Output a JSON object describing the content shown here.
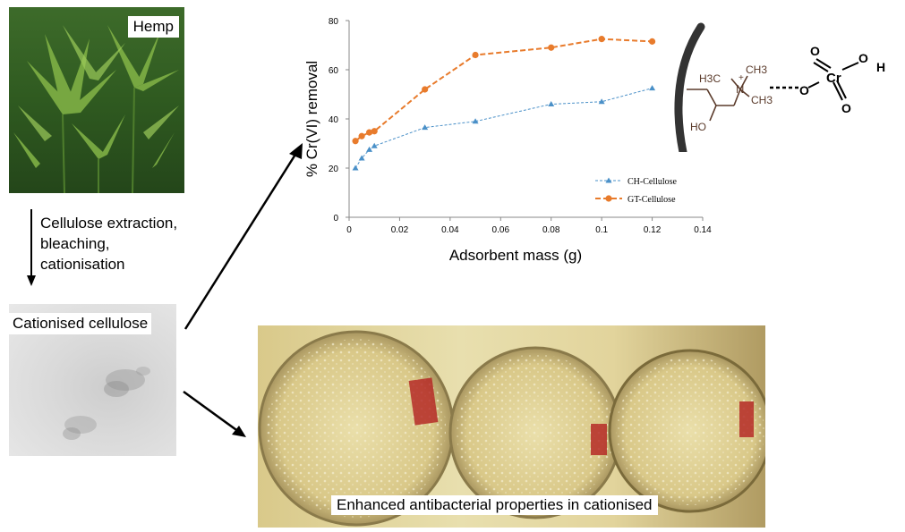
{
  "hemp": {
    "label": "Hemp"
  },
  "process": {
    "lines": [
      "Cellulose extraction,",
      "bleaching,",
      "cationisation"
    ]
  },
  "cationised": {
    "label": "Cationised cellulose"
  },
  "antibacterial": {
    "caption": "Enhanced antibacterial properties in cationised"
  },
  "molecule": {
    "h3c": "H3C",
    "ch3_top": "CH3",
    "ch3_right": "CH3",
    "n": "N",
    "plus": "+",
    "ho": "HO",
    "cr": "Cr",
    "o_top": "O",
    "o_left": "O",
    "o_right": "O",
    "h": "H",
    "o_bottom": "O"
  },
  "chart_data": {
    "type": "line",
    "xlabel": "Adsorbent mass (g)",
    "ylabel": "% Cr(VI) removal",
    "xlim": [
      0,
      0.14
    ],
    "ylim": [
      0,
      80
    ],
    "xticks": [
      "0",
      "0.02",
      "0.04",
      "0.06",
      "0.08",
      "0.1",
      "0.12",
      "0.14"
    ],
    "yticks": [
      "0",
      "20",
      "40",
      "60",
      "80"
    ],
    "grid": false,
    "legend_position": "bottom-right",
    "series": [
      {
        "name": "CH-Cellulose",
        "color": "#4a90c8",
        "marker": "triangle",
        "x": [
          0.0025,
          0.005,
          0.008,
          0.01,
          0.03,
          0.05,
          0.08,
          0.1,
          0.12
        ],
        "y": [
          20,
          24,
          27.5,
          29,
          36.5,
          39,
          46,
          47,
          52.5
        ]
      },
      {
        "name": "GT-Cellulose",
        "color": "#e87b2c",
        "marker": "circle",
        "x": [
          0.0025,
          0.005,
          0.008,
          0.01,
          0.03,
          0.05,
          0.08,
          0.1,
          0.12
        ],
        "y": [
          31,
          33,
          34.5,
          35,
          52,
          66,
          69,
          72.5,
          71.5
        ]
      }
    ]
  }
}
